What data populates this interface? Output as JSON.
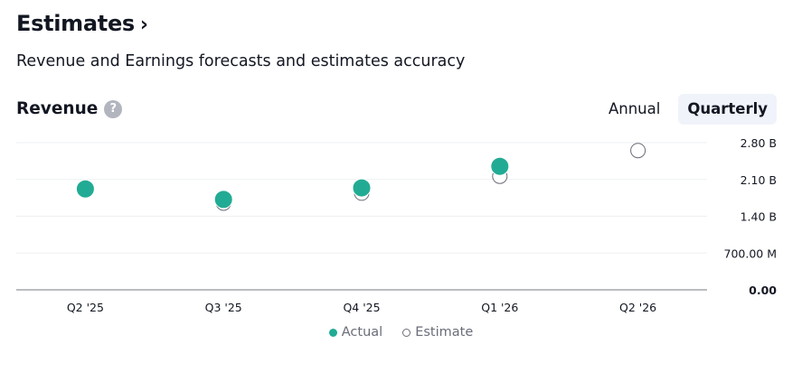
{
  "header": {
    "title": "Estimates",
    "chevron": "›"
  },
  "subtitle": "Revenue and Earnings forecasts and estimates accuracy",
  "section": {
    "title": "Revenue",
    "help": "?"
  },
  "tabs": [
    {
      "label": "Annual",
      "active": false
    },
    {
      "label": "Quarterly",
      "active": true
    }
  ],
  "legend": {
    "actual": "Actual",
    "estimate": "Estimate"
  },
  "colors": {
    "actual": "#22ab94",
    "estimate_stroke": "#6a6d78"
  },
  "chart_data": {
    "type": "scatter",
    "categories": [
      "Q2 '25",
      "Q3 '25",
      "Q4 '25",
      "Q1 '26",
      "Q2 '26"
    ],
    "series": [
      {
        "name": "Actual",
        "values": [
          1.92,
          1.72,
          1.94,
          2.35,
          null
        ]
      },
      {
        "name": "Estimate",
        "values": [
          null,
          1.65,
          1.84,
          2.16,
          2.65
        ]
      }
    ],
    "y_unit": "B",
    "ylim": [
      0,
      2.8
    ],
    "y_ticks": [
      {
        "value": 2.8,
        "label": "2.80 B"
      },
      {
        "value": 2.1,
        "label": "2.10 B"
      },
      {
        "value": 1.4,
        "label": "1.40 B"
      },
      {
        "value": 0.7,
        "label": "700.00 M"
      },
      {
        "value": 0.0,
        "label": "0.00"
      }
    ],
    "grid": true
  }
}
